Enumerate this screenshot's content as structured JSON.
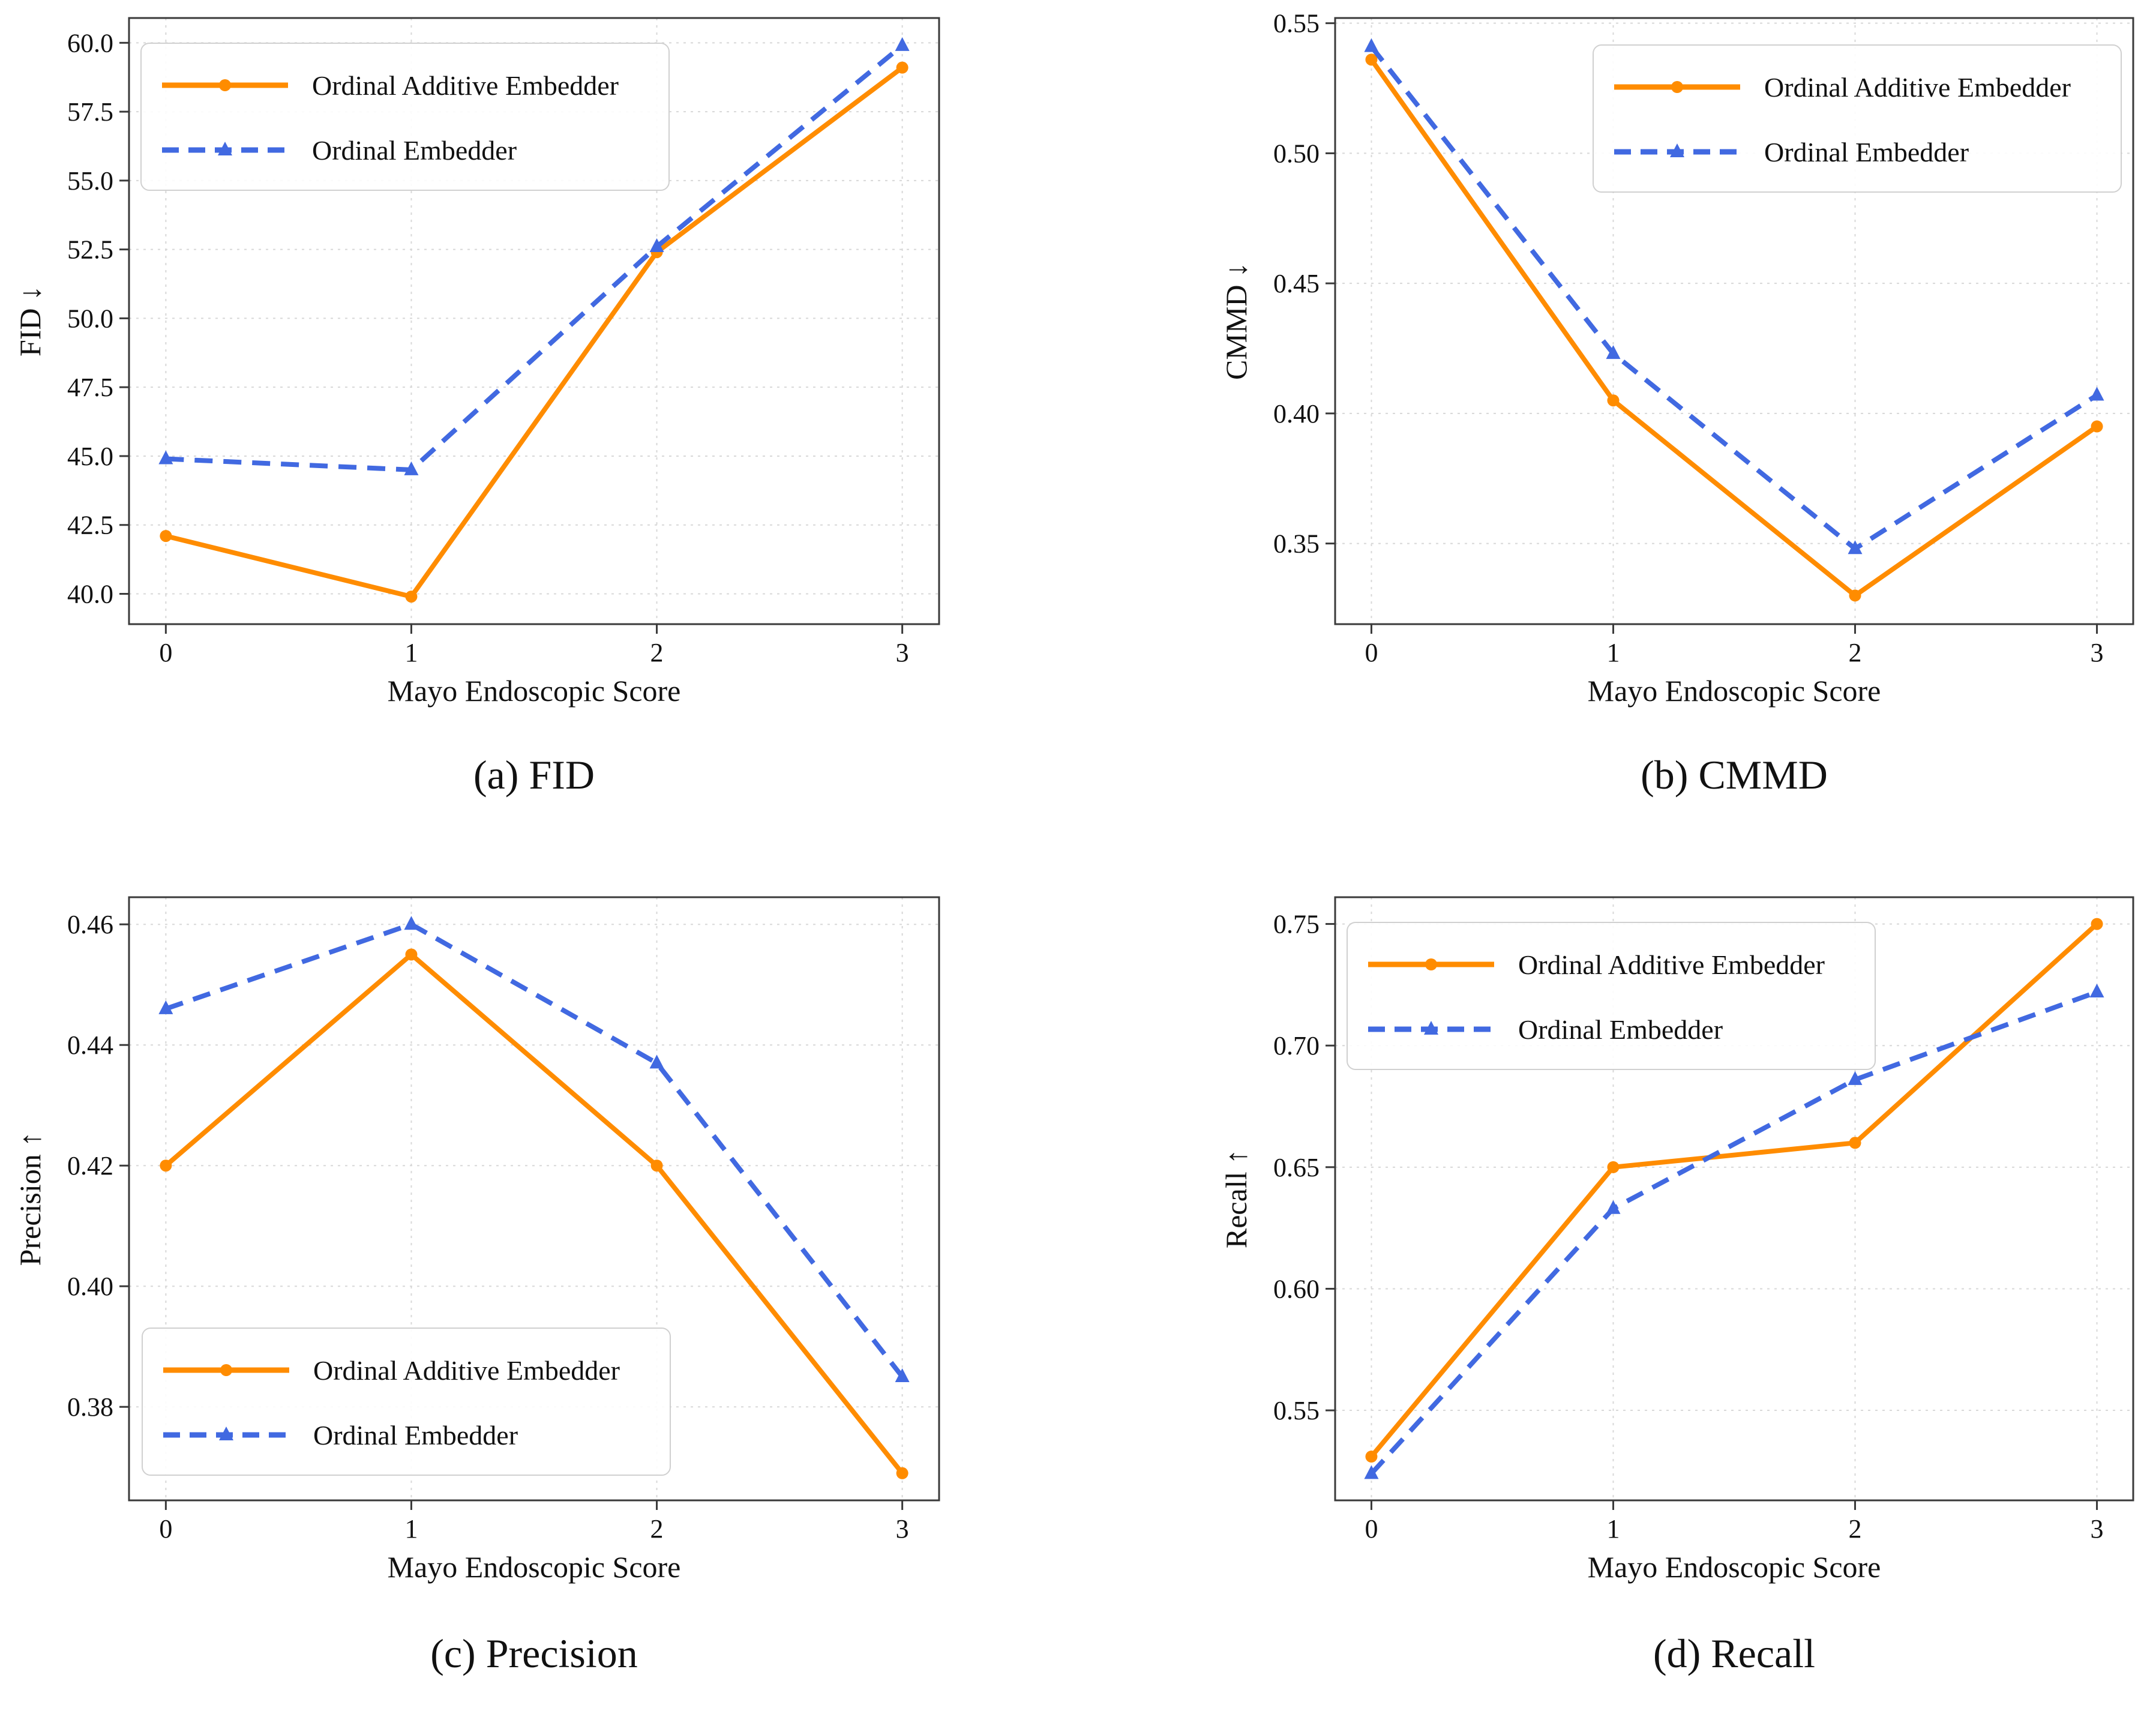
{
  "figure": {
    "background_color": "#ffffff",
    "grid_color": "#d8d8d8",
    "spine_color": "#3a3a3a",
    "tick_label_color": "#111111",
    "legend_border_color": "#d0d0d0",
    "series_styles": [
      {
        "name": "Ordinal Additive Embedder",
        "color": "#FF8C00",
        "line": "solid",
        "marker": "circle"
      },
      {
        "name": "Ordinal Embedder",
        "color": "#4169E1",
        "line": "dashed",
        "marker": "triangle"
      }
    ]
  },
  "chart_data": [
    {
      "type": "line",
      "caption": "(a) FID",
      "xlabel": "Mayo Endoscopic Score",
      "ylabel": "FID ↓",
      "x": [
        0,
        1,
        2,
        3
      ],
      "xtick_labels": [
        "0",
        "1",
        "2",
        "3"
      ],
      "xlim": [
        -0.15,
        3.15
      ],
      "ylim": [
        38.9,
        60.9
      ],
      "ytick_values": [
        40.0,
        42.5,
        45.0,
        47.5,
        50.0,
        52.5,
        55.0,
        57.5,
        60.0
      ],
      "ytick_labels": [
        "40.0",
        "42.5",
        "45.0",
        "47.5",
        "50.0",
        "52.5",
        "55.0",
        "57.5",
        "60.0"
      ],
      "grid": true,
      "legend_pos": "upper-left",
      "series": [
        {
          "name": "Ordinal Additive Embedder",
          "color": "#FF8C00",
          "line": "solid",
          "marker": "circle",
          "values": [
            42.1,
            39.9,
            52.4,
            59.1
          ]
        },
        {
          "name": "Ordinal Embedder",
          "color": "#4169E1",
          "line": "dashed",
          "marker": "triangle",
          "values": [
            44.9,
            44.5,
            52.6,
            59.9
          ]
        }
      ]
    },
    {
      "type": "line",
      "caption": "(b) CMMD",
      "xlabel": "Mayo Endoscopic Score",
      "ylabel": "CMMD ↓",
      "x": [
        0,
        1,
        2,
        3
      ],
      "xtick_labels": [
        "0",
        "1",
        "2",
        "3"
      ],
      "xlim": [
        -0.15,
        3.15
      ],
      "ylim": [
        0.319,
        0.552
      ],
      "ytick_values": [
        0.35,
        0.4,
        0.45,
        0.5,
        0.55
      ],
      "ytick_labels": [
        "0.35",
        "0.40",
        "0.45",
        "0.50",
        "0.55"
      ],
      "grid": true,
      "legend_pos": "upper-right",
      "series": [
        {
          "name": "Ordinal Additive Embedder",
          "color": "#FF8C00",
          "line": "solid",
          "marker": "circle",
          "values": [
            0.536,
            0.405,
            0.33,
            0.395
          ]
        },
        {
          "name": "Ordinal Embedder",
          "color": "#4169E1",
          "line": "dashed",
          "marker": "triangle",
          "values": [
            0.541,
            0.423,
            0.348,
            0.407
          ]
        }
      ]
    },
    {
      "type": "line",
      "caption": "(c) Precision",
      "xlabel": "Mayo Endoscopic Score",
      "ylabel": "Precision ↑",
      "x": [
        0,
        1,
        2,
        3
      ],
      "xtick_labels": [
        "0",
        "1",
        "2",
        "3"
      ],
      "xlim": [
        -0.15,
        3.15
      ],
      "ylim": [
        0.3645,
        0.4645
      ],
      "ytick_values": [
        0.38,
        0.4,
        0.42,
        0.44,
        0.46
      ],
      "ytick_labels": [
        "0.38",
        "0.40",
        "0.42",
        "0.44",
        "0.46"
      ],
      "grid": true,
      "legend_pos": "lower-left",
      "series": [
        {
          "name": "Ordinal Additive Embedder",
          "color": "#FF8C00",
          "line": "solid",
          "marker": "circle",
          "values": [
            0.42,
            0.455,
            0.42,
            0.369
          ]
        },
        {
          "name": "Ordinal Embedder",
          "color": "#4169E1",
          "line": "dashed",
          "marker": "triangle",
          "values": [
            0.446,
            0.46,
            0.437,
            0.385
          ]
        }
      ]
    },
    {
      "type": "line",
      "caption": "(d) Recall",
      "xlabel": "Mayo Endoscopic Score",
      "ylabel": "Recall ↑",
      "x": [
        0,
        1,
        2,
        3
      ],
      "xtick_labels": [
        "0",
        "1",
        "2",
        "3"
      ],
      "xlim": [
        -0.15,
        3.15
      ],
      "ylim": [
        0.513,
        0.761
      ],
      "ytick_values": [
        0.55,
        0.6,
        0.65,
        0.7,
        0.75
      ],
      "ytick_labels": [
        "0.55",
        "0.60",
        "0.65",
        "0.70",
        "0.75"
      ],
      "grid": true,
      "legend_pos": "upper-left",
      "series": [
        {
          "name": "Ordinal Additive Embedder",
          "color": "#FF8C00",
          "line": "solid",
          "marker": "circle",
          "values": [
            0.531,
            0.65,
            0.66,
            0.75
          ]
        },
        {
          "name": "Ordinal Embedder",
          "color": "#4169E1",
          "line": "dashed",
          "marker": "triangle",
          "values": [
            0.524,
            0.633,
            0.686,
            0.722
          ]
        }
      ]
    }
  ]
}
